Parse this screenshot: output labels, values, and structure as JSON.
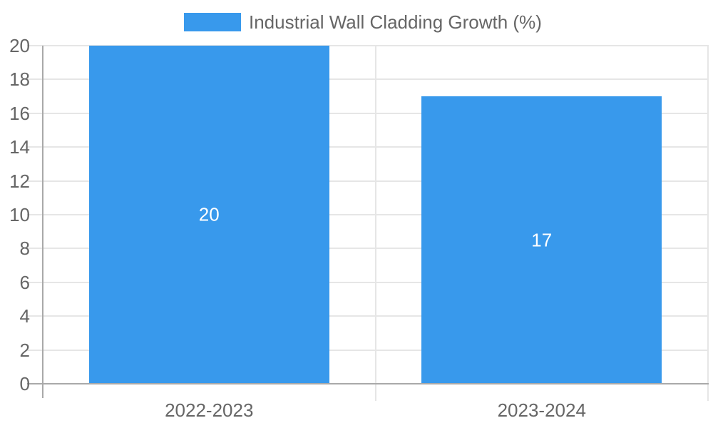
{
  "chart_data": {
    "type": "bar",
    "categories": [
      "2022-2023",
      "2023-2024"
    ],
    "values": [
      20,
      17
    ],
    "value_labels": [
      "20",
      "17"
    ],
    "title": "",
    "xlabel": "",
    "ylabel": "",
    "ylim": [
      0,
      20
    ],
    "yticks": [
      0,
      2,
      4,
      6,
      8,
      10,
      12,
      14,
      16,
      18,
      20
    ],
    "grid": true,
    "legend_position": "top",
    "legend_entries": [
      "Industrial Wall Cladding Growth (%)"
    ]
  },
  "legend": {
    "label": "Industrial Wall Cladding Growth (%)"
  },
  "colors": {
    "bar": "#3899ec",
    "bar_value_text": "#ffffff",
    "axis_text": "#666666",
    "gridline": "#e6e6e6",
    "axis_line": "#a9a9a9",
    "background": "#ffffff"
  }
}
